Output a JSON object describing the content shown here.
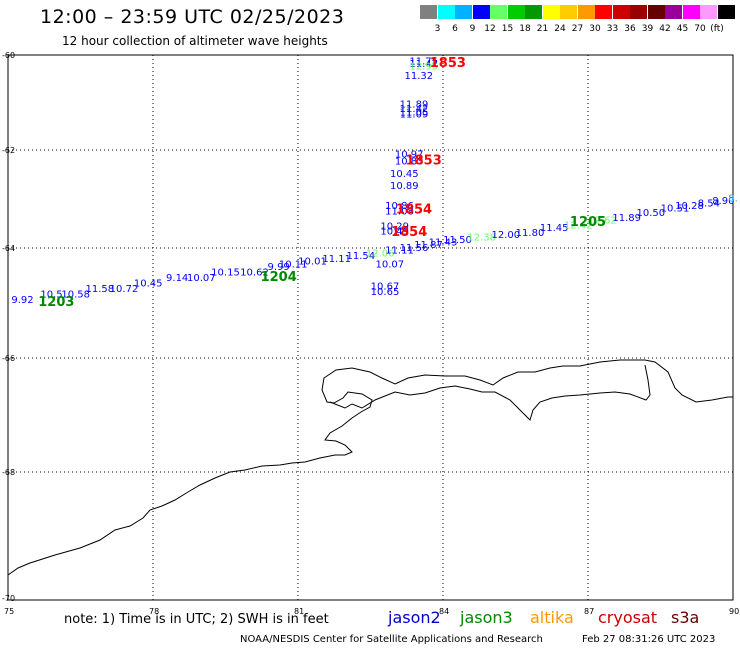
{
  "header": {
    "title": "12:00 – 23:59 UTC 02/25/2023",
    "subtitle": "12 hour collection of altimeter wave heights"
  },
  "legend": {
    "unit": "(ft)",
    "bins": [
      {
        "label": "",
        "color": "#808080"
      },
      {
        "label": "3",
        "color": "#00ffff"
      },
      {
        "label": "6",
        "color": "#00b2ff"
      },
      {
        "label": "9",
        "color": "#0000ff"
      },
      {
        "label": "12",
        "color": "#66ff66"
      },
      {
        "label": "15",
        "color": "#00cc00"
      },
      {
        "label": "18",
        "color": "#009900"
      },
      {
        "label": "21",
        "color": "#ffff00"
      },
      {
        "label": "24",
        "color": "#ffcc00"
      },
      {
        "label": "27",
        "color": "#ff9900"
      },
      {
        "label": "30",
        "color": "#ff0000"
      },
      {
        "label": "33",
        "color": "#cc0000"
      },
      {
        "label": "36",
        "color": "#990000"
      },
      {
        "label": "39",
        "color": "#660000"
      },
      {
        "label": "42",
        "color": "#990099"
      },
      {
        "label": "45",
        "color": "#ff00ff"
      },
      {
        "label": "70",
        "color": "#ff99ff"
      },
      {
        "label": "",
        "color": "#000000"
      }
    ]
  },
  "axes": {
    "lon_labels": [
      "75",
      "78",
      "81",
      "84",
      "87",
      "90"
    ],
    "lat_labels": [
      "-60",
      "-62",
      "-64",
      "-66",
      "-68",
      "-70"
    ]
  },
  "tracks": [
    {
      "points": [
        {
          "lon": 75.3,
          "lat": -65.0,
          "value": "9.92",
          "color": "#0000ff"
        },
        {
          "lon": 75.9,
          "lat": -64.9,
          "value": "10.5",
          "color": "#0000ff"
        },
        {
          "lon": 76.4,
          "lat": -64.9,
          "value": "10.58",
          "color": "#0000ff"
        },
        {
          "lon": 76.9,
          "lat": -64.8,
          "value": "11.58",
          "color": "#0000ff"
        },
        {
          "lon": 77.4,
          "lat": -64.8,
          "value": "10.72",
          "color": "#0000ff"
        },
        {
          "lon": 77.9,
          "lat": -64.7,
          "value": "10.45",
          "color": "#0000ff"
        },
        {
          "lon": 78.5,
          "lat": -64.6,
          "value": "9.14",
          "color": "#0000ff"
        },
        {
          "lon": 79.0,
          "lat": -64.6,
          "value": "10.07",
          "color": "#0000ff"
        },
        {
          "lon": 79.5,
          "lat": -64.5,
          "value": "10.15",
          "color": "#0000ff"
        },
        {
          "lon": 80.1,
          "lat": -64.5,
          "value": "10.62",
          "color": "#0000ff"
        },
        {
          "lon": 80.6,
          "lat": -64.4,
          "value": "9.99",
          "color": "#0000ff"
        },
        {
          "lon": 80.9,
          "lat": -64.35,
          "value": "10.11",
          "color": "#0000ff"
        },
        {
          "lon": 81.3,
          "lat": -64.3,
          "value": "10.01",
          "color": "#0000ff"
        },
        {
          "lon": 81.8,
          "lat": -64.25,
          "value": "11.11",
          "color": "#0000ff"
        },
        {
          "lon": 82.3,
          "lat": -64.2,
          "value": "11.54",
          "color": "#0000ff"
        },
        {
          "lon": 82.7,
          "lat": -64.15,
          "value": "12.06",
          "color": "#66ff66"
        },
        {
          "lon": 83.1,
          "lat": -64.1,
          "value": "11.11",
          "color": "#0000ff"
        },
        {
          "lon": 83.4,
          "lat": -64.05,
          "value": "11.56",
          "color": "#0000ff"
        },
        {
          "lon": 83.7,
          "lat": -64.0,
          "value": "11.87",
          "color": "#0000ff"
        },
        {
          "lon": 84.0,
          "lat": -63.95,
          "value": "11.43",
          "color": "#0000ff"
        },
        {
          "lon": 84.3,
          "lat": -63.9,
          "value": "11.50",
          "color": "#0000ff"
        },
        {
          "lon": 84.8,
          "lat": -63.85,
          "value": "12.38",
          "color": "#66ff66"
        },
        {
          "lon": 85.3,
          "lat": -63.8,
          "value": "12.00",
          "color": "#0000ff"
        },
        {
          "lon": 85.8,
          "lat": -63.75,
          "value": "11.80",
          "color": "#0000ff"
        },
        {
          "lon": 86.3,
          "lat": -63.65,
          "value": "11.45",
          "color": "#0000ff"
        },
        {
          "lon": 86.8,
          "lat": -63.6,
          "value": "12.42",
          "color": "#66ff66"
        },
        {
          "lon": 87.3,
          "lat": -63.5,
          "value": "12.62",
          "color": "#66ff66"
        },
        {
          "lon": 87.8,
          "lat": -63.45,
          "value": "11.89",
          "color": "#0000ff"
        },
        {
          "lon": 88.3,
          "lat": -63.35,
          "value": "10.50",
          "color": "#0000ff"
        },
        {
          "lon": 88.8,
          "lat": -63.25,
          "value": "10.51",
          "color": "#0000ff"
        },
        {
          "lon": 89.1,
          "lat": -63.2,
          "value": "10.28",
          "color": "#0000ff"
        },
        {
          "lon": 89.5,
          "lat": -63.15,
          "value": "8.54",
          "color": "#0000ff"
        },
        {
          "lon": 89.8,
          "lat": -63.1,
          "value": "8.90",
          "color": "#0000ff"
        },
        {
          "lon": 90.0,
          "lat": -63.05,
          "value": "8.",
          "color": "#00b2ff"
        }
      ]
    },
    {
      "points": [
        {
          "lon": 83.6,
          "lat": -60.2,
          "value": "11.75",
          "color": "#0000ff"
        },
        {
          "lon": 83.6,
          "lat": -60.25,
          "value": "11.47",
          "color": "#0000ff"
        },
        {
          "lon": 83.6,
          "lat": -60.3,
          "value": "12.95",
          "color": "#66ff66"
        },
        {
          "lon": 83.5,
          "lat": -60.5,
          "value": "11.32",
          "color": "#0000ff"
        },
        {
          "lon": 83.4,
          "lat": -61.1,
          "value": "11.89",
          "color": "#0000ff"
        },
        {
          "lon": 83.4,
          "lat": -61.2,
          "value": "11.42",
          "color": "#0000ff"
        },
        {
          "lon": 83.4,
          "lat": -61.27,
          "value": "11.05",
          "color": "#0000ff"
        },
        {
          "lon": 83.4,
          "lat": -61.32,
          "value": "11.09",
          "color": "#0000ff"
        },
        {
          "lon": 83.3,
          "lat": -62.15,
          "value": "10.97",
          "color": "#0000ff"
        },
        {
          "lon": 83.3,
          "lat": -62.3,
          "value": "10.83",
          "color": "#0000ff"
        },
        {
          "lon": 83.2,
          "lat": -62.55,
          "value": "10.45",
          "color": "#0000ff"
        },
        {
          "lon": 83.2,
          "lat": -62.8,
          "value": "10.89",
          "color": "#0000ff"
        },
        {
          "lon": 83.1,
          "lat": -63.2,
          "value": "10.86",
          "color": "#0000ff"
        },
        {
          "lon": 83.1,
          "lat": -63.32,
          "value": "11.08",
          "color": "#0000ff"
        },
        {
          "lon": 83.0,
          "lat": -63.62,
          "value": "10.29",
          "color": "#0000ff"
        },
        {
          "lon": 83.0,
          "lat": -63.72,
          "value": "10.49",
          "color": "#0000ff"
        },
        {
          "lon": 82.9,
          "lat": -64.35,
          "value": "10.07",
          "color": "#0000ff"
        },
        {
          "lon": 82.8,
          "lat": -64.75,
          "value": "10.67",
          "color": "#0000ff"
        },
        {
          "lon": 82.8,
          "lat": -64.85,
          "value": "10.65",
          "color": "#0000ff"
        }
      ]
    }
  ],
  "time_marks": [
    {
      "lon": 76.0,
      "lat": -65.05,
      "label": "1203",
      "color": "#008800"
    },
    {
      "lon": 80.6,
      "lat": -64.6,
      "label": "1204",
      "color": "#008800"
    },
    {
      "lon": 87.0,
      "lat": -63.55,
      "label": "1205",
      "color": "#008800"
    },
    {
      "lon": 84.1,
      "lat": -60.25,
      "label": "1853",
      "color": "#ff0000"
    },
    {
      "lon": 83.6,
      "lat": -62.3,
      "label": "1853",
      "color": "#ff0000"
    },
    {
      "lon": 83.4,
      "lat": -63.3,
      "label": "1854",
      "color": "#ff0000"
    },
    {
      "lon": 83.3,
      "lat": -63.75,
      "label": "1854",
      "color": "#ff0000"
    }
  ],
  "footer": {
    "note": "note: 1) Time is in UTC; 2) SWH is in feet",
    "satellites": [
      {
        "name": "jason2",
        "color": "#0000cc"
      },
      {
        "name": "jason3",
        "color": "#008800"
      },
      {
        "name": "altika",
        "color": "#ff9900"
      },
      {
        "name": "cryosat",
        "color": "#cc0000"
      },
      {
        "name": "s3a",
        "color": "#660000"
      }
    ],
    "credit": "NOAA/NESDIS Center for Satellite Applications and Research",
    "generated": "Feb 27 08:31:26 UTC 2023"
  }
}
